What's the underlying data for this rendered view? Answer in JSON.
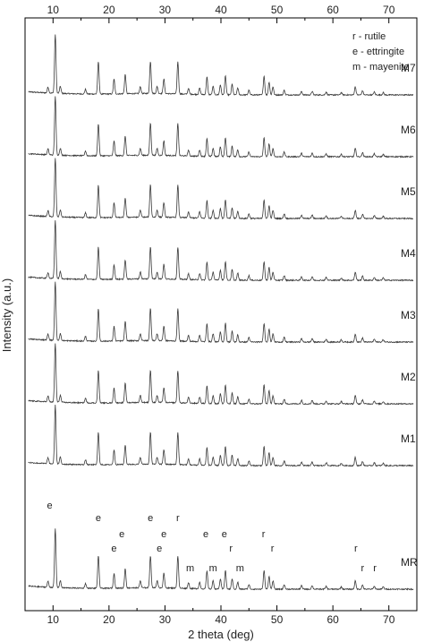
{
  "chart_data": {
    "type": "line",
    "title": "",
    "xlabel": "2 theta (deg)",
    "ylabel": "Intensity (a.u.)",
    "xlim": [
      5,
      75
    ],
    "x_ticks": [
      10,
      20,
      30,
      40,
      50,
      60,
      70
    ],
    "x_tick_labels": [
      "10",
      "20",
      "30",
      "40",
      "50",
      "60",
      "70"
    ],
    "grid": false,
    "legend": {
      "placement": "top-right",
      "entries": [
        "r - rutile",
        "e - ettringite",
        "m - mayenite"
      ]
    },
    "series": [
      {
        "name": "M7",
        "offset": 8
      },
      {
        "name": "M6",
        "offset": 7
      },
      {
        "name": "M5",
        "offset": 6
      },
      {
        "name": "M4",
        "offset": 5
      },
      {
        "name": "M3",
        "offset": 4
      },
      {
        "name": "M2",
        "offset": 3
      },
      {
        "name": "M1",
        "offset": 2
      },
      {
        "name": "MR",
        "offset": 0
      }
    ],
    "peaks": [
      {
        "x": 9.1,
        "h": 0.1
      },
      {
        "x": 10.4,
        "h": 1.0
      },
      {
        "x": 11.3,
        "h": 0.12
      },
      {
        "x": 15.8,
        "h": 0.08
      },
      {
        "x": 18.1,
        "h": 0.55
      },
      {
        "x": 20.9,
        "h": 0.25
      },
      {
        "x": 22.9,
        "h": 0.33
      },
      {
        "x": 25.6,
        "h": 0.12
      },
      {
        "x": 27.4,
        "h": 0.55
      },
      {
        "x": 28.6,
        "h": 0.12
      },
      {
        "x": 29.8,
        "h": 0.25
      },
      {
        "x": 32.3,
        "h": 0.55
      },
      {
        "x": 34.2,
        "h": 0.1
      },
      {
        "x": 36.2,
        "h": 0.11
      },
      {
        "x": 37.5,
        "h": 0.3
      },
      {
        "x": 38.6,
        "h": 0.14
      },
      {
        "x": 39.9,
        "h": 0.17
      },
      {
        "x": 40.8,
        "h": 0.32
      },
      {
        "x": 42.0,
        "h": 0.18
      },
      {
        "x": 43.0,
        "h": 0.12
      },
      {
        "x": 45.0,
        "h": 0.08
      },
      {
        "x": 47.7,
        "h": 0.32
      },
      {
        "x": 48.6,
        "h": 0.22
      },
      {
        "x": 49.3,
        "h": 0.14
      },
      {
        "x": 51.3,
        "h": 0.08
      },
      {
        "x": 54.4,
        "h": 0.06
      },
      {
        "x": 56.3,
        "h": 0.06
      },
      {
        "x": 58.8,
        "h": 0.05
      },
      {
        "x": 61.5,
        "h": 0.04
      },
      {
        "x": 64.0,
        "h": 0.14
      },
      {
        "x": 65.3,
        "h": 0.07
      },
      {
        "x": 67.4,
        "h": 0.05
      },
      {
        "x": 69.0,
        "h": 0.04
      }
    ],
    "peak_labels": [
      {
        "text": "e",
        "x": 9.4,
        "row": 0
      },
      {
        "text": "e",
        "x": 18.1,
        "row": 1
      },
      {
        "text": "e",
        "x": 20.9,
        "row": 3
      },
      {
        "text": "e",
        "x": 22.3,
        "row": 2
      },
      {
        "text": "e",
        "x": 27.4,
        "row": 1
      },
      {
        "text": "e",
        "x": 29.0,
        "row": 3
      },
      {
        "text": "e",
        "x": 29.8,
        "row": 2
      },
      {
        "text": "r",
        "x": 32.3,
        "row": 1
      },
      {
        "text": "m",
        "x": 34.5,
        "row": 4
      },
      {
        "text": "e",
        "x": 37.3,
        "row": 2
      },
      {
        "text": "m",
        "x": 38.6,
        "row": 4
      },
      {
        "text": "e",
        "x": 40.6,
        "row": 2
      },
      {
        "text": "r",
        "x": 41.8,
        "row": 3
      },
      {
        "text": "m",
        "x": 43.4,
        "row": 4
      },
      {
        "text": "r",
        "x": 47.6,
        "row": 2
      },
      {
        "text": "r",
        "x": 49.2,
        "row": 3
      },
      {
        "text": "r",
        "x": 64.1,
        "row": 3
      },
      {
        "text": "r",
        "x": 65.3,
        "row": 4
      },
      {
        "text": "r",
        "x": 67.5,
        "row": 4
      }
    ],
    "colors": {
      "line": "#3a3a3a",
      "axis": "#000000",
      "text": "#222222"
    }
  }
}
